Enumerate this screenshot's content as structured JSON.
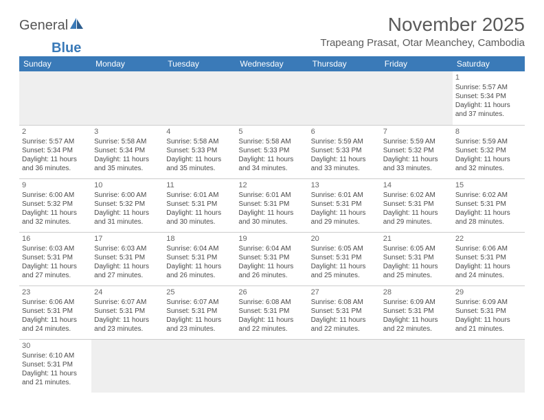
{
  "colors": {
    "header_bg": "#3a7ab8",
    "header_text": "#ffffff",
    "row_border": "#3a7ab8",
    "text": "#4a4a4a",
    "shaded_bg": "#efefef",
    "page_bg": "#ffffff",
    "logo_gray": "#555555",
    "logo_blue": "#3a7ab8"
  },
  "logo": {
    "part1": "General",
    "part2": "Blue"
  },
  "title": "November 2025",
  "location": "Trapeang Prasat, Otar Meanchey, Cambodia",
  "day_headers": [
    "Sunday",
    "Monday",
    "Tuesday",
    "Wednesday",
    "Thursday",
    "Friday",
    "Saturday"
  ],
  "days": {
    "1": {
      "sunrise": "5:57 AM",
      "sunset": "5:34 PM",
      "daylight": "11 hours and 37 minutes."
    },
    "2": {
      "sunrise": "5:57 AM",
      "sunset": "5:34 PM",
      "daylight": "11 hours and 36 minutes."
    },
    "3": {
      "sunrise": "5:58 AM",
      "sunset": "5:34 PM",
      "daylight": "11 hours and 35 minutes."
    },
    "4": {
      "sunrise": "5:58 AM",
      "sunset": "5:33 PM",
      "daylight": "11 hours and 35 minutes."
    },
    "5": {
      "sunrise": "5:58 AM",
      "sunset": "5:33 PM",
      "daylight": "11 hours and 34 minutes."
    },
    "6": {
      "sunrise": "5:59 AM",
      "sunset": "5:33 PM",
      "daylight": "11 hours and 33 minutes."
    },
    "7": {
      "sunrise": "5:59 AM",
      "sunset": "5:32 PM",
      "daylight": "11 hours and 33 minutes."
    },
    "8": {
      "sunrise": "5:59 AM",
      "sunset": "5:32 PM",
      "daylight": "11 hours and 32 minutes."
    },
    "9": {
      "sunrise": "6:00 AM",
      "sunset": "5:32 PM",
      "daylight": "11 hours and 32 minutes."
    },
    "10": {
      "sunrise": "6:00 AM",
      "sunset": "5:32 PM",
      "daylight": "11 hours and 31 minutes."
    },
    "11": {
      "sunrise": "6:01 AM",
      "sunset": "5:31 PM",
      "daylight": "11 hours and 30 minutes."
    },
    "12": {
      "sunrise": "6:01 AM",
      "sunset": "5:31 PM",
      "daylight": "11 hours and 30 minutes."
    },
    "13": {
      "sunrise": "6:01 AM",
      "sunset": "5:31 PM",
      "daylight": "11 hours and 29 minutes."
    },
    "14": {
      "sunrise": "6:02 AM",
      "sunset": "5:31 PM",
      "daylight": "11 hours and 29 minutes."
    },
    "15": {
      "sunrise": "6:02 AM",
      "sunset": "5:31 PM",
      "daylight": "11 hours and 28 minutes."
    },
    "16": {
      "sunrise": "6:03 AM",
      "sunset": "5:31 PM",
      "daylight": "11 hours and 27 minutes."
    },
    "17": {
      "sunrise": "6:03 AM",
      "sunset": "5:31 PM",
      "daylight": "11 hours and 27 minutes."
    },
    "18": {
      "sunrise": "6:04 AM",
      "sunset": "5:31 PM",
      "daylight": "11 hours and 26 minutes."
    },
    "19": {
      "sunrise": "6:04 AM",
      "sunset": "5:31 PM",
      "daylight": "11 hours and 26 minutes."
    },
    "20": {
      "sunrise": "6:05 AM",
      "sunset": "5:31 PM",
      "daylight": "11 hours and 25 minutes."
    },
    "21": {
      "sunrise": "6:05 AM",
      "sunset": "5:31 PM",
      "daylight": "11 hours and 25 minutes."
    },
    "22": {
      "sunrise": "6:06 AM",
      "sunset": "5:31 PM",
      "daylight": "11 hours and 24 minutes."
    },
    "23": {
      "sunrise": "6:06 AM",
      "sunset": "5:31 PM",
      "daylight": "11 hours and 24 minutes."
    },
    "24": {
      "sunrise": "6:07 AM",
      "sunset": "5:31 PM",
      "daylight": "11 hours and 23 minutes."
    },
    "25": {
      "sunrise": "6:07 AM",
      "sunset": "5:31 PM",
      "daylight": "11 hours and 23 minutes."
    },
    "26": {
      "sunrise": "6:08 AM",
      "sunset": "5:31 PM",
      "daylight": "11 hours and 22 minutes."
    },
    "27": {
      "sunrise": "6:08 AM",
      "sunset": "5:31 PM",
      "daylight": "11 hours and 22 minutes."
    },
    "28": {
      "sunrise": "6:09 AM",
      "sunset": "5:31 PM",
      "daylight": "11 hours and 22 minutes."
    },
    "29": {
      "sunrise": "6:09 AM",
      "sunset": "5:31 PM",
      "daylight": "11 hours and 21 minutes."
    },
    "30": {
      "sunrise": "6:10 AM",
      "sunset": "5:31 PM",
      "daylight": "11 hours and 21 minutes."
    }
  },
  "layout": {
    "first_day_column": 6,
    "num_days": 30,
    "columns": 7
  },
  "labels": {
    "sunrise_prefix": "Sunrise: ",
    "sunset_prefix": "Sunset: ",
    "daylight_prefix": "Daylight: "
  }
}
